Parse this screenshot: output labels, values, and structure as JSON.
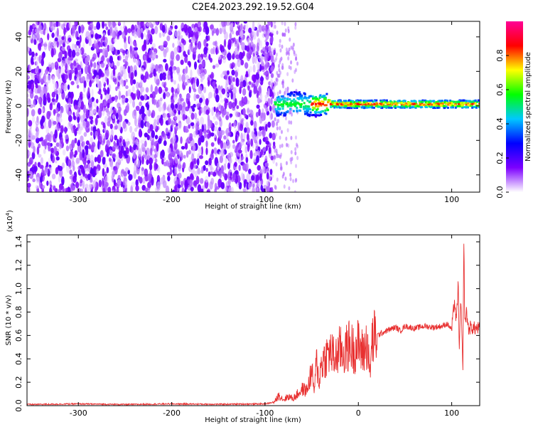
{
  "title": "C2E4.2023.292.19.52.G04",
  "chart_data": [
    {
      "type": "heatmap",
      "xlabel": "Height of straight line (km)",
      "ylabel": "Frequency (Hz)",
      "xlim": [
        -355,
        130
      ],
      "ylim": [
        -50,
        49
      ],
      "xticks": [
        -300,
        -200,
        -100,
        0,
        100
      ],
      "xtick_labels": [
        "-300",
        "-200",
        "-100",
        "0",
        "100"
      ],
      "yticks": [
        -40,
        -20,
        0,
        20,
        40
      ],
      "ytick_labels": [
        "-40",
        "-20",
        "0",
        "20",
        "40"
      ],
      "colorbar": {
        "label": "Normalized spectral amplitude",
        "range": [
          0,
          1
        ],
        "ticks": [
          0.0,
          0.2,
          0.4,
          0.6,
          0.8
        ],
        "tick_labels": [
          "0.0",
          "0.2",
          "0.4",
          "0.6",
          "0.8"
        ],
        "colors": [
          "#ffffff",
          "#7d00ff",
          "#0000ff",
          "#00c8ff",
          "#00ff00",
          "#ffff00",
          "#ff0000",
          "#ff0096"
        ]
      },
      "regions": [
        {
          "name": "noise",
          "x_range": [
            -355,
            -90
          ],
          "freq_range": [
            -50,
            49
          ],
          "amplitude": 0.15
        },
        {
          "name": "signal",
          "x_range": [
            -90,
            130
          ],
          "freq_center": 1,
          "amplitude_range": [
            0.3,
            0.9
          ]
        }
      ]
    },
    {
      "type": "line",
      "xlabel": "Height of straight line (km)",
      "ylabel": "SNR (10 * v/v)",
      "y_multiplier_label": "(x10",
      "y_multiplier_exp": "4",
      "y_multiplier_close": ")",
      "xlim": [
        -355,
        130
      ],
      "ylim": [
        0,
        1.46
      ],
      "xticks": [
        -300,
        -200,
        -100,
        0,
        100
      ],
      "xtick_labels": [
        "-300",
        "-200",
        "-100",
        "0",
        "100"
      ],
      "yticks": [
        0.0,
        0.2,
        0.4,
        0.6,
        0.8,
        1.0,
        1.2,
        1.4
      ],
      "ytick_labels": [
        "0.0",
        "0.2",
        "0.4",
        "0.6",
        "0.8",
        "1.0",
        "1.2",
        "1.4"
      ],
      "color": "#e83030",
      "points": [
        [
          -355,
          0.01
        ],
        [
          -300,
          0.015
        ],
        [
          -250,
          0.01
        ],
        [
          -200,
          0.015
        ],
        [
          -150,
          0.012
        ],
        [
          -100,
          0.015
        ],
        [
          -90,
          0.03
        ],
        [
          -85,
          0.09
        ],
        [
          -80,
          0.05
        ],
        [
          -75,
          0.08
        ],
        [
          -70,
          0.06
        ],
        [
          -65,
          0.1
        ],
        [
          -60,
          0.14
        ],
        [
          -55,
          0.13
        ],
        [
          -50,
          0.3
        ],
        [
          -47,
          0.12
        ],
        [
          -45,
          0.38
        ],
        [
          -42,
          0.2
        ],
        [
          -40,
          0.35
        ],
        [
          -35,
          0.42
        ],
        [
          -30,
          0.46
        ],
        [
          -25,
          0.4
        ],
        [
          -20,
          0.48
        ],
        [
          -15,
          0.45
        ],
        [
          -10,
          0.52
        ],
        [
          -5,
          0.48
        ],
        [
          0,
          0.52
        ],
        [
          5,
          0.45
        ],
        [
          10,
          0.55
        ],
        [
          12,
          0.25
        ],
        [
          15,
          0.56
        ],
        [
          20,
          0.6
        ],
        [
          30,
          0.64
        ],
        [
          40,
          0.67
        ],
        [
          45,
          0.64
        ],
        [
          50,
          0.68
        ],
        [
          60,
          0.66
        ],
        [
          70,
          0.68
        ],
        [
          80,
          0.67
        ],
        [
          90,
          0.68
        ],
        [
          95,
          0.7
        ],
        [
          100,
          0.65
        ],
        [
          103,
          0.9
        ],
        [
          105,
          0.7
        ],
        [
          107,
          1.05
        ],
        [
          108,
          0.5
        ],
        [
          110,
          0.9
        ],
        [
          112,
          0.25
        ],
        [
          113,
          1.46
        ],
        [
          114,
          0.7
        ],
        [
          116,
          0.8
        ],
        [
          118,
          0.65
        ],
        [
          120,
          0.67
        ],
        [
          125,
          0.66
        ],
        [
          130,
          0.66
        ]
      ]
    }
  ]
}
